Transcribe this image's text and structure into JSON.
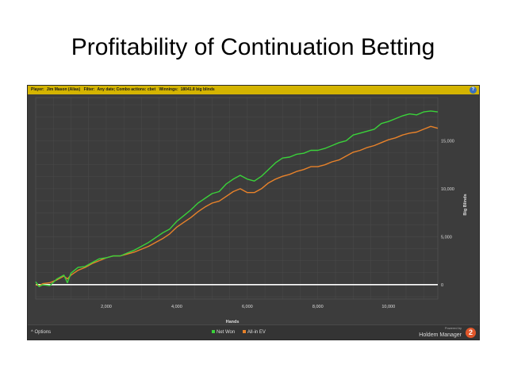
{
  "slide": {
    "title": "Profitability of Continuation Betting"
  },
  "header": {
    "player_label": "Player:",
    "player_value": "Jim Mason (Alias)",
    "filter_label": "Filter:",
    "filter_value": "Any date; Combo actions: cbet",
    "winnings_label": "Winnings:",
    "winnings_value": "18041.8 big blinds",
    "help_label": "?"
  },
  "footer": {
    "options_label": "^ Options",
    "powered_label": "Powered by",
    "product_label": "Holdem Manager",
    "logo_label": "2"
  },
  "colors": {
    "net_won": "#3ad23a",
    "all_in_ev": "#e8822a",
    "background": "#3c3c3c",
    "header": "#d4b400",
    "zero_line": "#ffffff"
  },
  "chart_data": {
    "type": "line",
    "title": "",
    "xlabel": "Hands",
    "ylabel": "Big Blinds",
    "xlim": [
      0,
      11400
    ],
    "ylim": [
      -1500,
      19500
    ],
    "x_ticks": [
      2000,
      4000,
      6000,
      8000,
      10000
    ],
    "x_tick_labels": [
      "2,000",
      "4,000",
      "6,000",
      "8,000",
      "10,000"
    ],
    "y_ticks": [
      0,
      5000,
      10000,
      15000
    ],
    "y_tick_labels": [
      "0",
      "5,000",
      "10,000",
      "15,000"
    ],
    "y_axis_side": "right",
    "grid": true,
    "legend": "bottom-center",
    "series": [
      {
        "name": "Net Won",
        "color": "#3ad23a",
        "x": [
          0,
          100,
          200,
          400,
          600,
          800,
          900,
          1000,
          1200,
          1400,
          1600,
          1800,
          2000,
          2200,
          2400,
          2600,
          2800,
          3000,
          3200,
          3400,
          3600,
          3800,
          4000,
          4200,
          4400,
          4600,
          4800,
          5000,
          5200,
          5400,
          5600,
          5800,
          6000,
          6200,
          6400,
          6600,
          6800,
          7000,
          7200,
          7400,
          7600,
          7800,
          8000,
          8200,
          8400,
          8600,
          8800,
          9000,
          9200,
          9400,
          9600,
          9800,
          10000,
          10200,
          10400,
          10600,
          10800,
          11000,
          11200,
          11400
        ],
        "y": [
          300,
          -200,
          0,
          -100,
          600,
          1000,
          200,
          1200,
          1800,
          1900,
          2300,
          2700,
          2800,
          3000,
          3000,
          3300,
          3600,
          4000,
          4400,
          4900,
          5400,
          5800,
          6600,
          7200,
          7800,
          8500,
          9000,
          9500,
          9700,
          10500,
          11000,
          11400,
          11000,
          10800,
          11300,
          12000,
          12700,
          13200,
          13300,
          13600,
          13700,
          14000,
          14000,
          14200,
          14500,
          14800,
          15000,
          15600,
          15800,
          16000,
          16200,
          16800,
          17000,
          17300,
          17600,
          17800,
          17700,
          18000,
          18100,
          18000
        ]
      },
      {
        "name": "All-in EV",
        "color": "#e8822a",
        "x": [
          0,
          100,
          200,
          400,
          600,
          800,
          900,
          1000,
          1200,
          1400,
          1600,
          1800,
          2000,
          2200,
          2400,
          2600,
          2800,
          3000,
          3200,
          3400,
          3600,
          3800,
          4000,
          4200,
          4400,
          4600,
          4800,
          5000,
          5200,
          5400,
          5600,
          5800,
          6000,
          6200,
          6400,
          6600,
          6800,
          7000,
          7200,
          7400,
          7600,
          7800,
          8000,
          8200,
          8400,
          8600,
          8800,
          9000,
          9200,
          9400,
          9600,
          9800,
          10000,
          10200,
          10400,
          10600,
          10800,
          11000,
          11200,
          11400
        ],
        "y": [
          0,
          -100,
          100,
          200,
          500,
          900,
          600,
          1000,
          1500,
          1800,
          2200,
          2500,
          2800,
          3000,
          3000,
          3200,
          3400,
          3700,
          4000,
          4400,
          4800,
          5300,
          6000,
          6500,
          7000,
          7600,
          8100,
          8500,
          8700,
          9200,
          9700,
          10000,
          9600,
          9600,
          10000,
          10600,
          11000,
          11300,
          11500,
          11800,
          12000,
          12300,
          12300,
          12500,
          12800,
          13000,
          13400,
          13800,
          14000,
          14300,
          14500,
          14800,
          15100,
          15300,
          15600,
          15800,
          15900,
          16200,
          16500,
          16300
        ]
      }
    ]
  }
}
